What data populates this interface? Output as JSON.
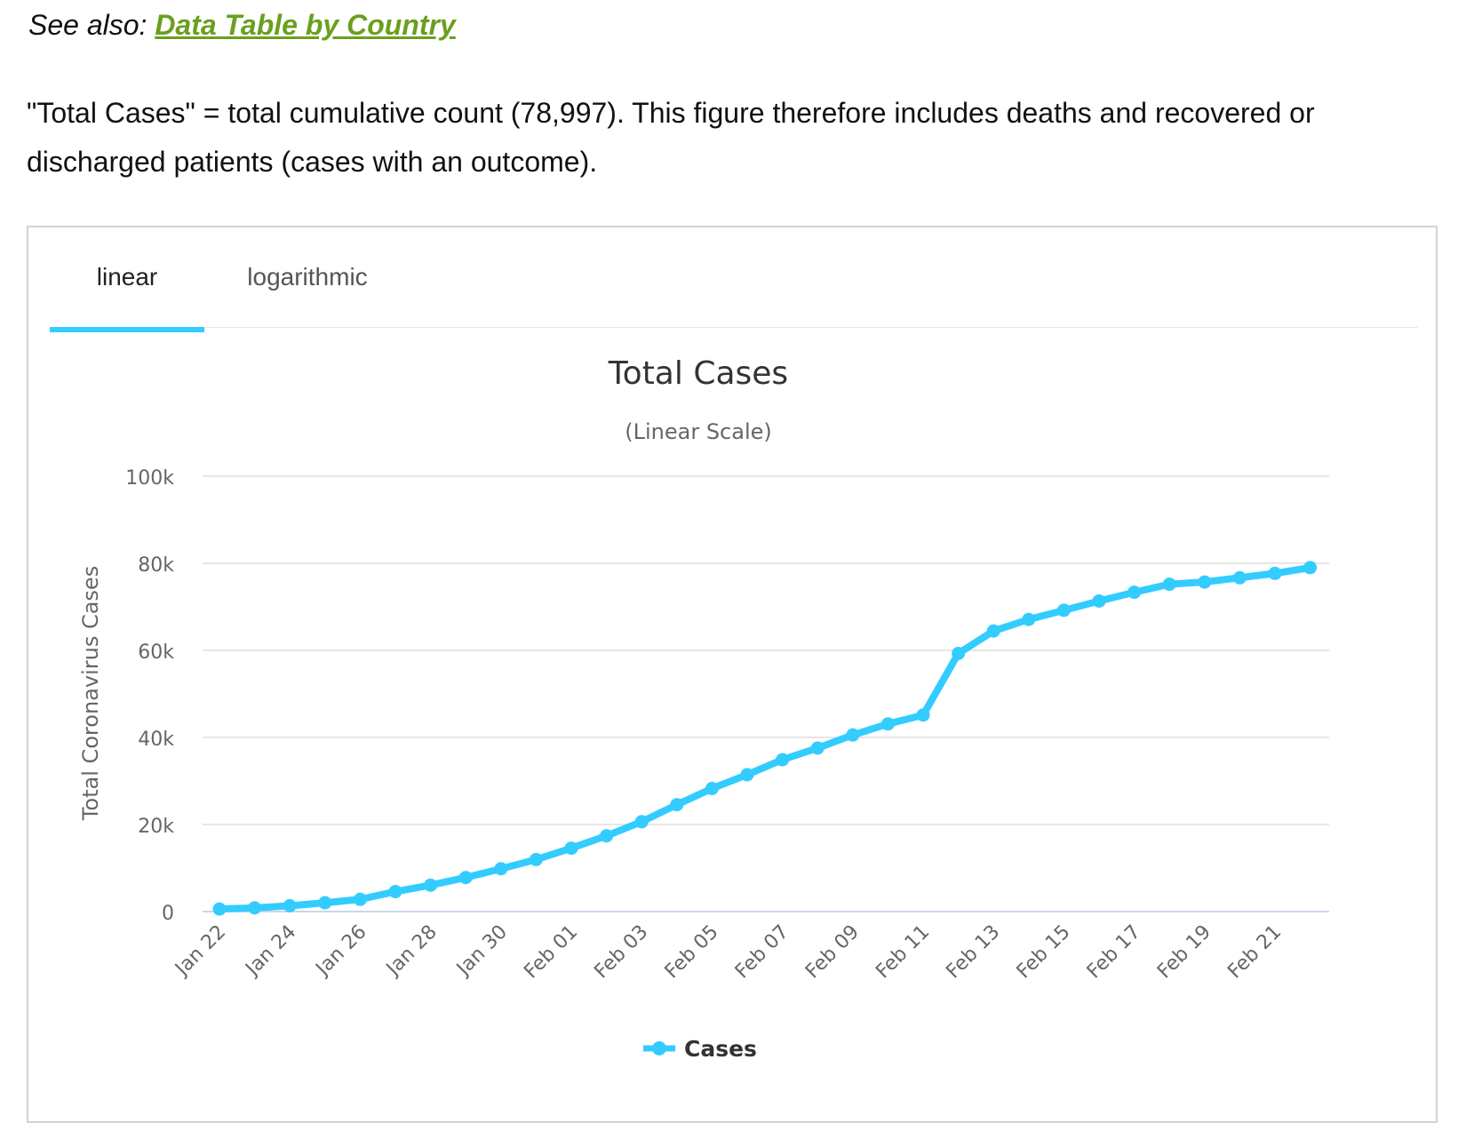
{
  "see_also": {
    "prefix": "See also: ",
    "link_text": "Data Table by Country"
  },
  "description": "\"Total Cases\" = total cumulative count (78,997). This figure therefore includes deaths and recovered or discharged patients (cases with an outcome).",
  "tabs": [
    {
      "label": "linear",
      "active": true
    },
    {
      "label": "logarithmic",
      "active": false
    }
  ],
  "colors": {
    "series": "#33ccff",
    "link": "#6a9f1f",
    "grid": "#e6e6e6"
  },
  "chart_data": {
    "type": "line",
    "title": "Total Cases",
    "subtitle": "(Linear Scale)",
    "ylabel": "Total Coronavirus Cases",
    "xlabel": "",
    "ylim": [
      0,
      100000
    ],
    "yticks": [
      0,
      20000,
      40000,
      60000,
      80000,
      100000
    ],
    "ytick_labels": [
      "0",
      "20k",
      "40k",
      "60k",
      "80k",
      "100k"
    ],
    "grid": true,
    "legend": {
      "position": "bottom-center",
      "entries": [
        "Cases"
      ]
    },
    "x": [
      "Jan 22",
      "Jan 23",
      "Jan 24",
      "Jan 25",
      "Jan 26",
      "Jan 27",
      "Jan 28",
      "Jan 29",
      "Jan 30",
      "Jan 31",
      "Feb 01",
      "Feb 02",
      "Feb 03",
      "Feb 04",
      "Feb 05",
      "Feb 06",
      "Feb 07",
      "Feb 08",
      "Feb 09",
      "Feb 10",
      "Feb 11",
      "Feb 12",
      "Feb 13",
      "Feb 14",
      "Feb 15",
      "Feb 16",
      "Feb 17",
      "Feb 18",
      "Feb 19",
      "Feb 20",
      "Feb 21",
      "Feb 22"
    ],
    "x_tick_labels": [
      "Jan 22",
      "Jan 24",
      "Jan 26",
      "Jan 28",
      "Jan 30",
      "Feb 01",
      "Feb 03",
      "Feb 05",
      "Feb 07",
      "Feb 09",
      "Feb 11",
      "Feb 13",
      "Feb 15",
      "Feb 17",
      "Feb 19",
      "Feb 21"
    ],
    "series": [
      {
        "name": "Cases",
        "values": [
          580,
          845,
          1317,
          2015,
          2800,
          4581,
          6058,
          7813,
          9823,
          11950,
          14553,
          17391,
          20630,
          24545,
          28266,
          31439,
          34876,
          37552,
          40553,
          43099,
          45134,
          59287,
          64438,
          67100,
          69197,
          71329,
          73332,
          75184,
          75700,
          76677,
          77673,
          78997
        ]
      }
    ]
  }
}
